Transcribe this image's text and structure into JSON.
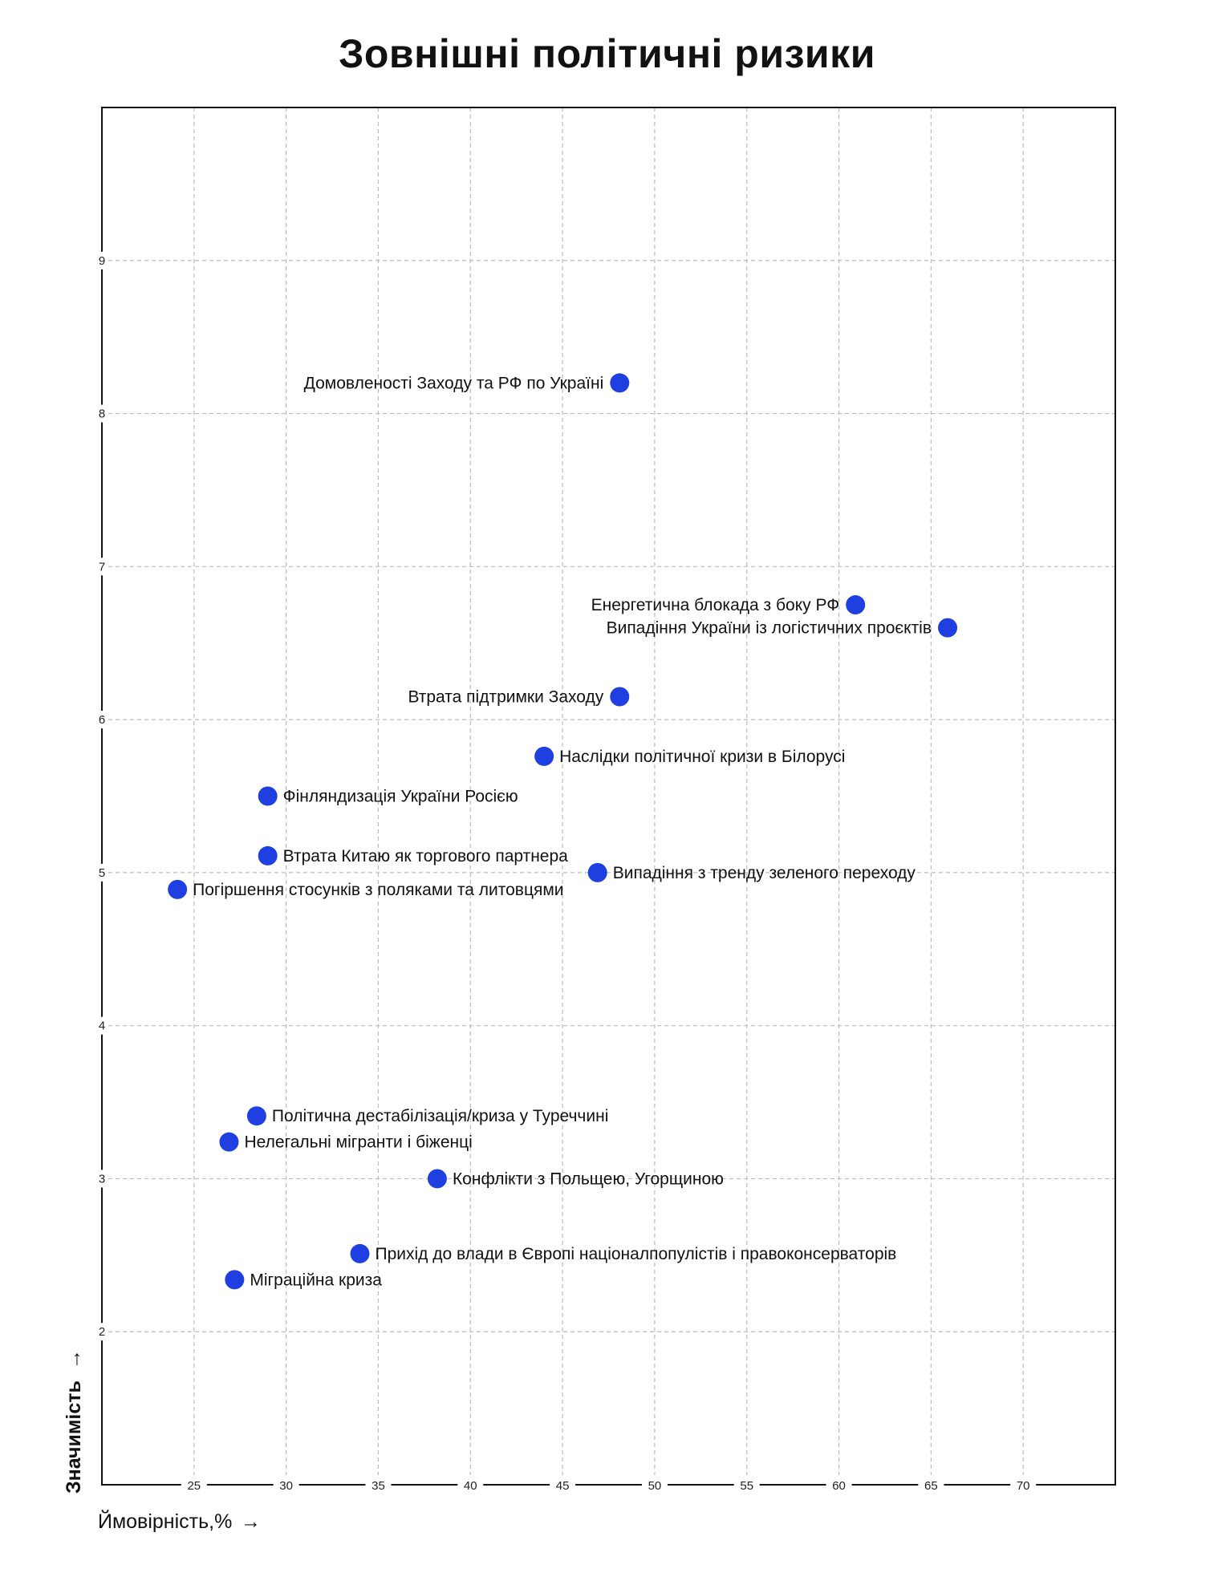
{
  "chart_data": {
    "type": "scatter",
    "title": "Зовнішні політичні ризики",
    "xlabel": "Ймовірність,%",
    "ylabel": "Значимість",
    "arrow": "→",
    "xlim": [
      20,
      75
    ],
    "ylim": [
      1,
      10
    ],
    "xticks": [
      25,
      30,
      35,
      40,
      45,
      50,
      55,
      60,
      65,
      70
    ],
    "yticks": [
      2,
      3,
      4,
      5,
      6,
      7,
      8,
      9
    ],
    "grid": true,
    "point_color": "#1f3fe0",
    "points": [
      {
        "label": "Домовленості Заходу та РФ по Україні",
        "x": 48.1,
        "y": 8.2,
        "label_side": "left"
      },
      {
        "label": "Енергетична блокада з боку РФ",
        "x": 60.9,
        "y": 6.75,
        "label_side": "left"
      },
      {
        "label": "Випадіння України із логістичних проєктів",
        "x": 65.9,
        "y": 6.6,
        "label_side": "left"
      },
      {
        "label": "Втрата підтримки Заходу",
        "x": 48.1,
        "y": 6.15,
        "label_side": "left"
      },
      {
        "label": "Наслідки політичної кризи в Білорусі",
        "x": 44.0,
        "y": 5.76,
        "label_side": "right"
      },
      {
        "label": "Фінляндизація України Росією",
        "x": 29.0,
        "y": 5.5,
        "label_side": "right"
      },
      {
        "label": "Втрата Китаю як торгового партнера",
        "x": 29.0,
        "y": 5.11,
        "label_side": "right"
      },
      {
        "label": "Випадіння з тренду зеленого переходу",
        "x": 46.9,
        "y": 5.0,
        "label_side": "right"
      },
      {
        "label": "Погіршення стосунків з поляками та литовцями",
        "x": 24.1,
        "y": 4.89,
        "label_side": "right"
      },
      {
        "label": "Політична дестабілізація/криза у Туреччині",
        "x": 28.4,
        "y": 3.41,
        "label_side": "right"
      },
      {
        "label": "Нелегальні мігранти і біженці",
        "x": 26.9,
        "y": 3.24,
        "label_side": "right"
      },
      {
        "label": "Конфлікти з Польщею, Угорщиною",
        "x": 38.2,
        "y": 3.0,
        "label_side": "right"
      },
      {
        "label": "Прихід до влади в Європі націоналпопулістів і правоконсерваторів",
        "x": 34.0,
        "y": 2.51,
        "label_side": "right"
      },
      {
        "label": "Міграційна криза",
        "x": 27.2,
        "y": 2.34,
        "label_side": "right"
      }
    ]
  }
}
